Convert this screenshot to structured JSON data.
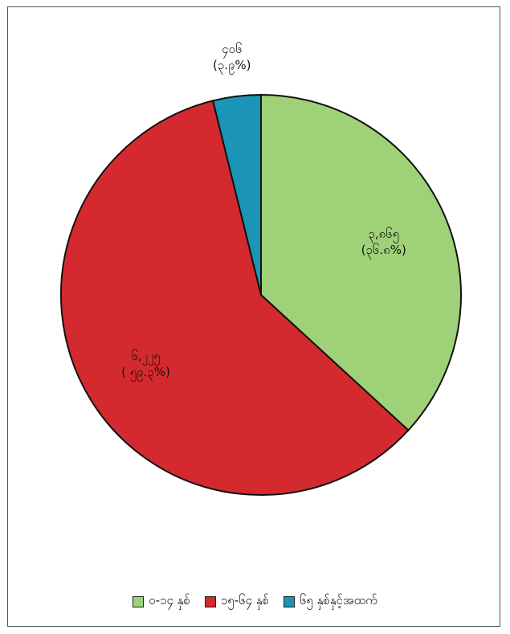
{
  "chart_data": {
    "type": "pie",
    "title": "",
    "categories": [
      "၀-၁၄ နှစ်",
      "၁၅-၆၄ နှစ်",
      "၆၅ နှစ်နှင့်အထက်"
    ],
    "values": [
      3865,
      6225,
      406
    ],
    "percent": [
      36.8,
      59.3,
      3.9
    ],
    "slice_labels": [
      {
        "value": "၃,၈၆၅",
        "percent": "(၃၆.၈%)"
      },
      {
        "value": "၆,၂၂၅",
        "percent": "( ၅၉.၃%)"
      },
      {
        "value": "၄၀၆",
        "percent": "(၃.၉%)"
      }
    ],
    "colors": [
      "#9fd178",
      "#d42a2f",
      "#1a94b7"
    ],
    "legend_position": "bottom",
    "start_angle": "12 o'clock",
    "direction": "clockwise"
  }
}
